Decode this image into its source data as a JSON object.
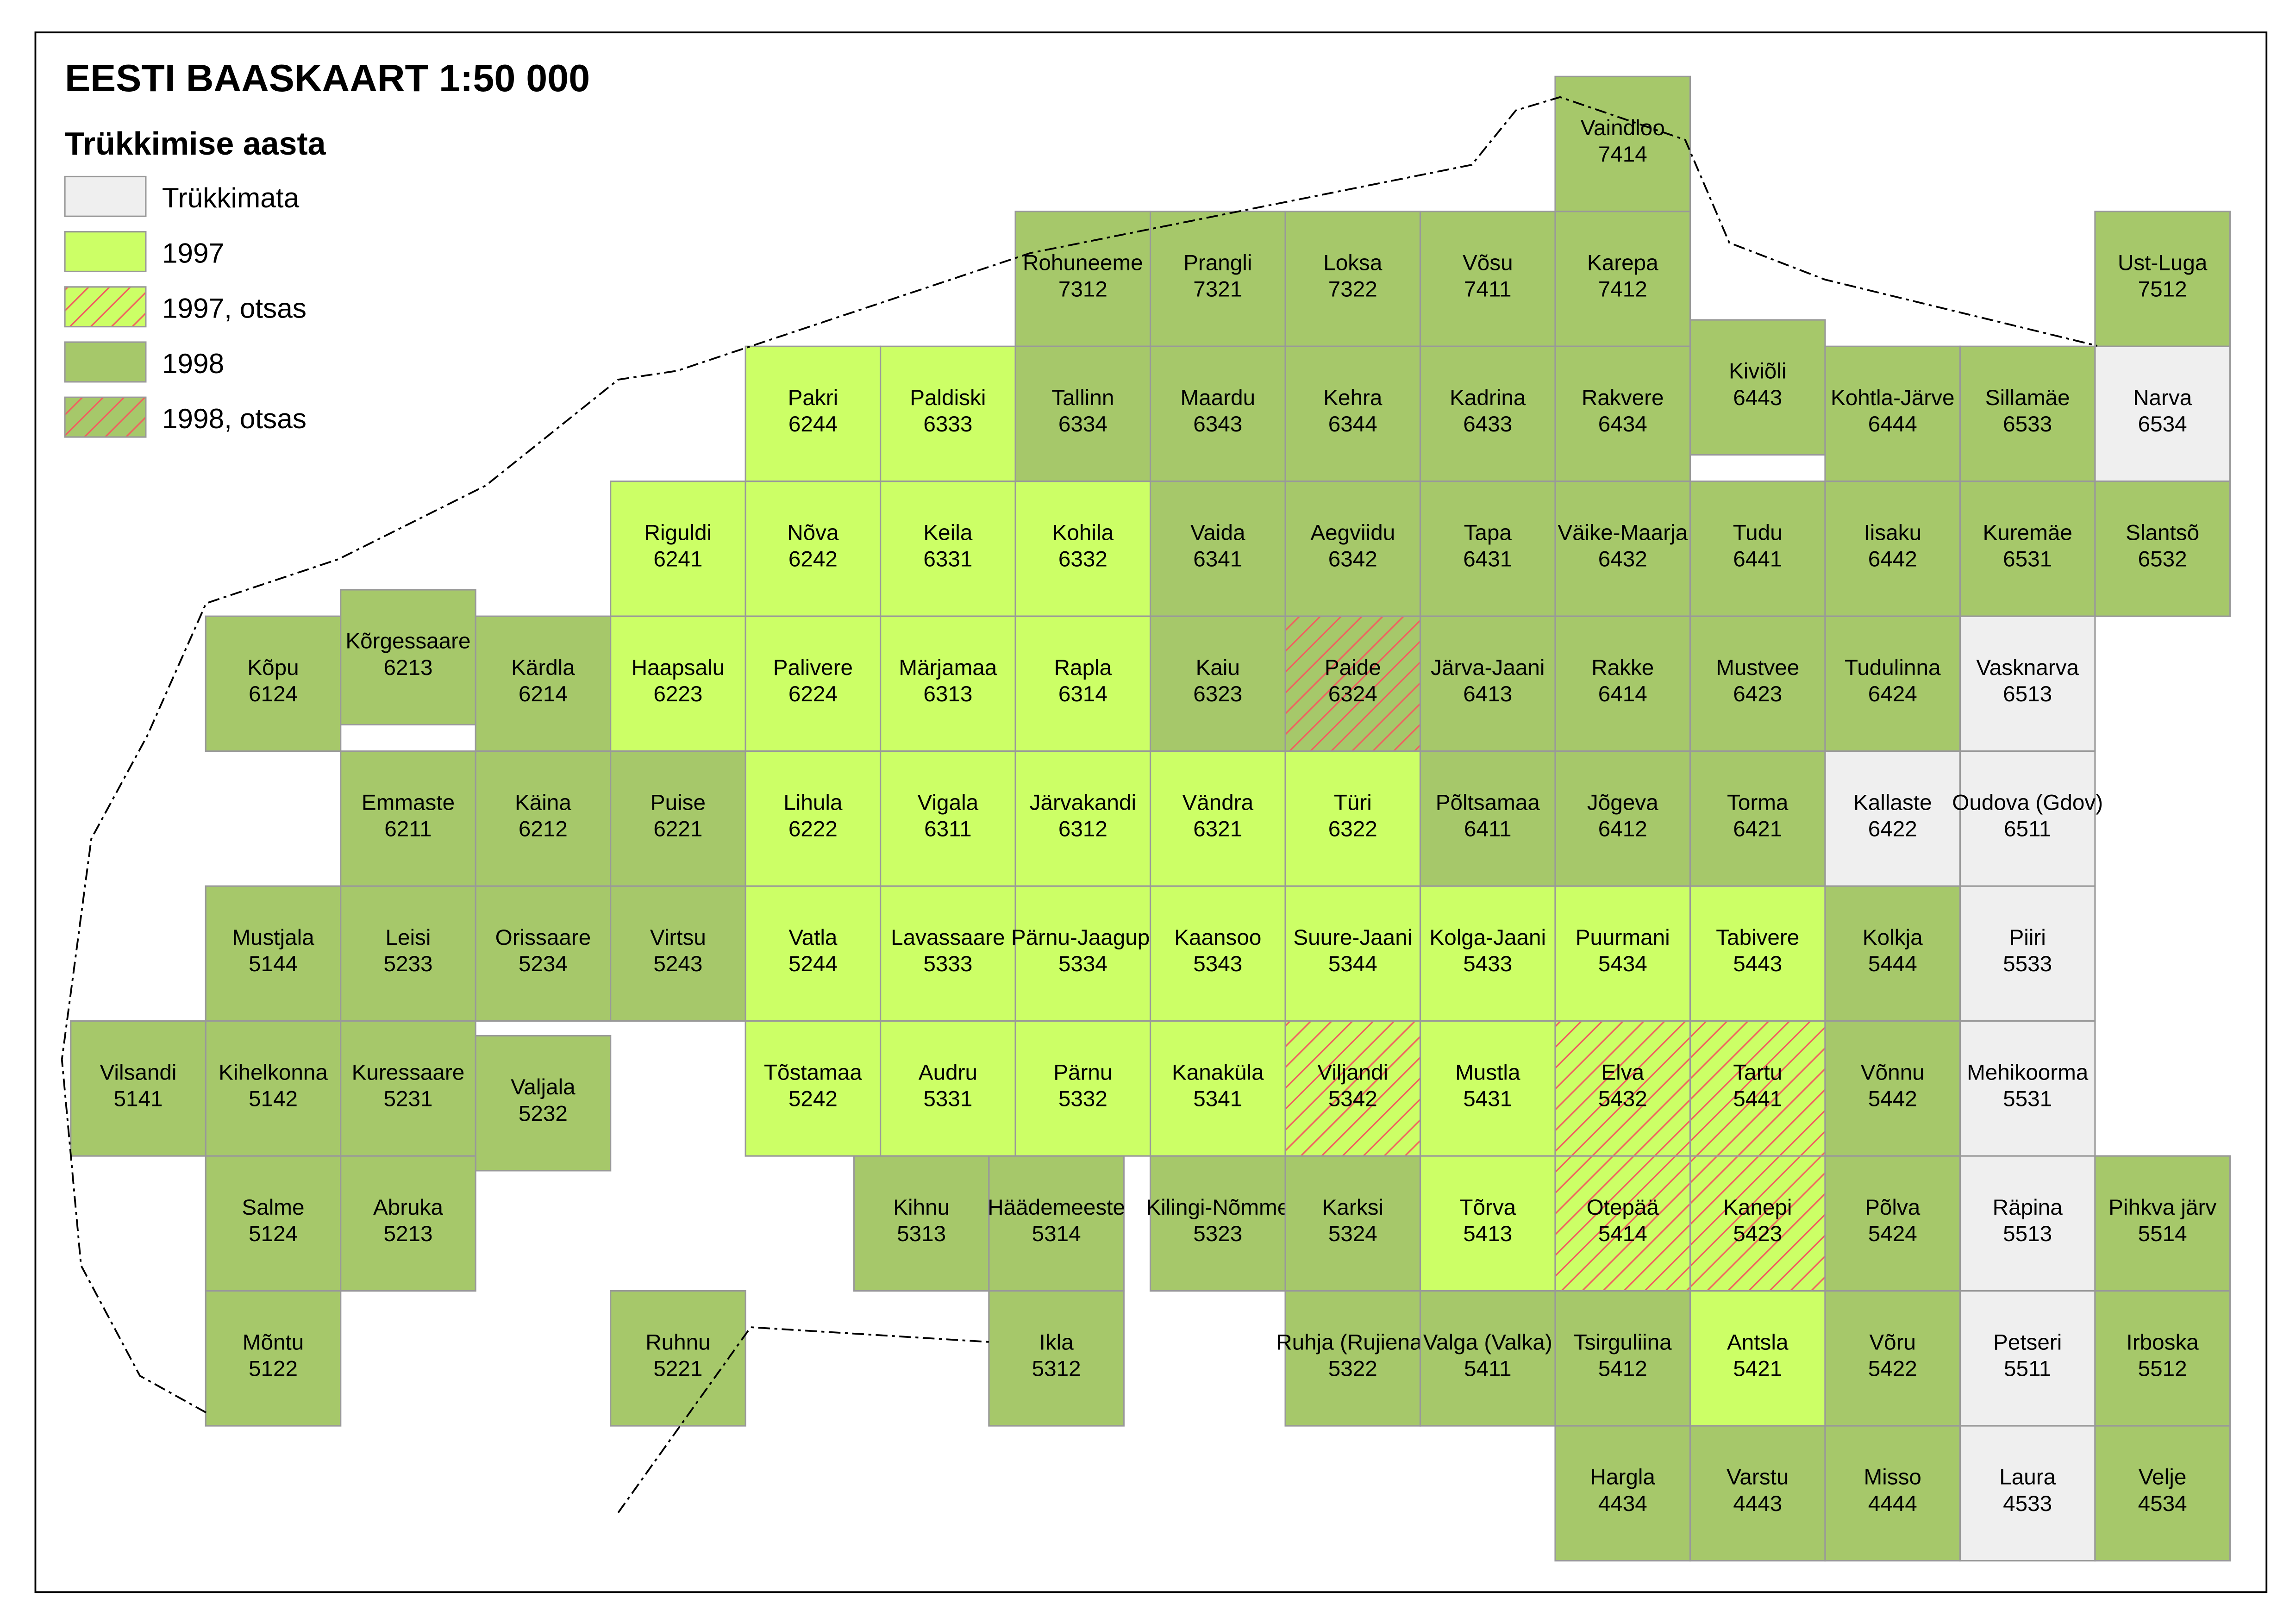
{
  "title": "EESTI BAASKAART  1:50 000",
  "legend": {
    "title": "Trükkimise aasta",
    "items": [
      {
        "key": "u",
        "label": "Trükkimata"
      },
      {
        "key": "97",
        "label": "1997"
      },
      {
        "key": "97o",
        "label": "1997, otsas"
      },
      {
        "key": "98",
        "label": "1998"
      },
      {
        "key": "98o",
        "label": "1998, otsas"
      }
    ]
  },
  "colors": {
    "u": "#efefef",
    "97": "#ccff66",
    "98": "#a6c86a",
    "hatch": "#f06060",
    "tile_border": "#999999",
    "coast": "#8b5a00"
  },
  "sheet_rows": [
    [
      null,
      null,
      null,
      null,
      null,
      null,
      null,
      null,
      null,
      null,
      null,
      [
        "Vaindloo",
        "7414",
        "98"
      ]
    ],
    [
      null,
      null,
      null,
      null,
      null,
      null,
      null,
      [
        "Rohuneeme",
        "7312",
        "98"
      ],
      [
        "Prangli",
        "7321",
        "98"
      ],
      [
        "Loksa",
        "7322",
        "98"
      ],
      [
        "Võsu",
        "7411",
        "98"
      ],
      [
        "Karepa",
        "7412",
        "98"
      ],
      null,
      null,
      null,
      [
        "Ust-Luga",
        "7512",
        "98"
      ]
    ],
    [
      null,
      null,
      null,
      null,
      null,
      [
        "Pakri",
        "6244",
        "97"
      ],
      [
        "Paldiski",
        "6333",
        "97"
      ],
      [
        "Tallinn",
        "6334",
        "98"
      ],
      [
        "Maardu",
        "6343",
        "98"
      ],
      [
        "Kehra",
        "6344",
        "98"
      ],
      [
        "Kadrina",
        "6433",
        "98"
      ],
      [
        "Rakvere",
        "6434",
        "98"
      ],
      [
        "Kiviõli",
        "6443",
        "98"
      ],
      [
        "Kohtla-Järve",
        "6444",
        "98"
      ],
      [
        "Sillamäe",
        "6533",
        "98"
      ],
      [
        "Narva",
        "6534",
        "u"
      ]
    ],
    [
      null,
      null,
      null,
      null,
      [
        "Riguldi",
        "6241",
        "97"
      ],
      [
        "Nõva",
        "6242",
        "97"
      ],
      [
        "Keila",
        "6331",
        "97"
      ],
      [
        "Kohila",
        "6332",
        "97"
      ],
      [
        "Vaida",
        "6341",
        "98"
      ],
      [
        "Aegviidu",
        "6342",
        "98"
      ],
      [
        "Tapa",
        "6431",
        "98"
      ],
      [
        "Väike-Maarja",
        "6432",
        "98"
      ],
      [
        "Tudu",
        "6441",
        "98"
      ],
      [
        "Iisaku",
        "6442",
        "98"
      ],
      [
        "Kuremäe",
        "6531",
        "98"
      ],
      [
        "Slantsõ",
        "6532",
        "98"
      ]
    ],
    [
      null,
      [
        "Kõpu",
        "6124",
        "98"
      ],
      [
        "Kõrgessaare",
        "6213",
        "98"
      ],
      [
        "Kärdla",
        "6214",
        "98"
      ],
      [
        "Haapsalu",
        "6223",
        "97"
      ],
      [
        "Palivere",
        "6224",
        "97"
      ],
      [
        "Märjamaa",
        "6313",
        "97"
      ],
      [
        "Rapla",
        "6314",
        "97"
      ],
      [
        "Kaiu",
        "6323",
        "98"
      ],
      [
        "Paide",
        "6324",
        "98o"
      ],
      [
        "Järva-Jaani",
        "6413",
        "98"
      ],
      [
        "Rakke",
        "6414",
        "98"
      ],
      [
        "Mustvee",
        "6423",
        "98"
      ],
      [
        "Tudulinna",
        "6424",
        "98"
      ],
      [
        "Vasknarva",
        "6513",
        "u"
      ]
    ],
    [
      null,
      null,
      [
        "Emmaste",
        "6211",
        "98"
      ],
      [
        "Käina",
        "6212",
        "98"
      ],
      [
        "Puise",
        "6221",
        "98"
      ],
      [
        "Lihula",
        "6222",
        "97"
      ],
      [
        "Vigala",
        "6311",
        "97"
      ],
      [
        "Järvakandi",
        "6312",
        "97"
      ],
      [
        "Vändra",
        "6321",
        "97"
      ],
      [
        "Türi",
        "6322",
        "97"
      ],
      [
        "Põltsamaa",
        "6411",
        "98"
      ],
      [
        "Jõgeva",
        "6412",
        "98"
      ],
      [
        "Torma",
        "6421",
        "98"
      ],
      [
        "Kallaste",
        "6422",
        "u"
      ],
      [
        "Oudova (Gdov)",
        "6511",
        "u"
      ]
    ],
    [
      null,
      [
        "Mustjala",
        "5144",
        "98"
      ],
      [
        "Leisi",
        "5233",
        "98"
      ],
      [
        "Orissaare",
        "5234",
        "98"
      ],
      [
        "Virtsu",
        "5243",
        "98"
      ],
      [
        "Vatla",
        "5244",
        "97"
      ],
      [
        "Lavassaare",
        "5333",
        "97"
      ],
      [
        "Pärnu-Jaagupi",
        "5334",
        "97"
      ],
      [
        "Kaansoo",
        "5343",
        "97"
      ],
      [
        "Suure-Jaani",
        "5344",
        "97"
      ],
      [
        "Kolga-Jaani",
        "5433",
        "97"
      ],
      [
        "Puurmani",
        "5434",
        "97"
      ],
      [
        "Tabivere",
        "5443",
        "97"
      ],
      [
        "Kolkja",
        "5444",
        "98"
      ],
      [
        "Piiri",
        "5533",
        "u"
      ]
    ],
    [
      [
        "Vilsandi",
        "5141",
        "98"
      ],
      [
        "Kihelkonna",
        "5142",
        "98"
      ],
      [
        "Kuressaare",
        "5231",
        "98"
      ],
      [
        "Valjala",
        "5232",
        "98"
      ],
      null,
      [
        "Tõstamaa",
        "5242",
        "97"
      ],
      [
        "Audru",
        "5331",
        "97"
      ],
      [
        "Pärnu",
        "5332",
        "97"
      ],
      [
        "Kanaküla",
        "5341",
        "97"
      ],
      [
        "Viljandi",
        "5342",
        "97o"
      ],
      [
        "Mustla",
        "5431",
        "97"
      ],
      [
        "Elva",
        "5432",
        "97o"
      ],
      [
        "Tartu",
        "5441",
        "97o"
      ],
      [
        "Võnnu",
        "5442",
        "98"
      ],
      [
        "Mehikoorma",
        "5531",
        "u"
      ]
    ],
    [
      null,
      [
        "Salme",
        "5124",
        "98"
      ],
      [
        "Abruka",
        "5213",
        "98"
      ],
      null,
      null,
      null,
      [
        "Kihnu",
        "5313",
        "98"
      ],
      [
        "Häädemeeste",
        "5314",
        "98"
      ],
      [
        "Kilingi-Nõmme",
        "5323",
        "98"
      ],
      [
        "Karksi",
        "5324",
        "98"
      ],
      [
        "Tõrva",
        "5413",
        "97"
      ],
      [
        "Otepää",
        "5414",
        "97o"
      ],
      [
        "Kanepi",
        "5423",
        "97o"
      ],
      [
        "Põlva",
        "5424",
        "98"
      ],
      [
        "Räpina",
        "5513",
        "u"
      ],
      [
        "Pihkva järv",
        "5514",
        "98"
      ]
    ],
    [
      null,
      [
        "Mõntu",
        "5122",
        "98"
      ],
      null,
      null,
      [
        "Ruhnu",
        "5221",
        "98"
      ],
      null,
      null,
      [
        "Ikla",
        "5312",
        "98"
      ],
      null,
      [
        "Ruhja (Rujiena)",
        "5322",
        "98"
      ],
      [
        "Valga (Valka)",
        "5411",
        "98"
      ],
      [
        "Tsirguliina",
        "5412",
        "98"
      ],
      [
        "Antsla",
        "5421",
        "97"
      ],
      [
        "Võru",
        "5422",
        "98"
      ],
      [
        "Petseri",
        "5511",
        "u"
      ],
      [
        "Irboska",
        "5512",
        "98"
      ]
    ],
    [
      null,
      null,
      null,
      null,
      null,
      null,
      null,
      null,
      null,
      null,
      null,
      [
        "Hargla",
        "4434",
        "98"
      ],
      [
        "Varstu",
        "4443",
        "98"
      ],
      [
        "Misso",
        "4444",
        "98"
      ],
      [
        "Laura",
        "4533",
        "u"
      ],
      [
        "Velje",
        "4534",
        "98"
      ]
    ]
  ]
}
